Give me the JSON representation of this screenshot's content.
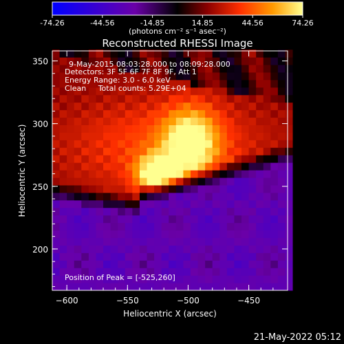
{
  "chart_data": {
    "type": "heatmap",
    "title": "Reconstructed RHESSI Image",
    "xlabel": "Heliocentric X (arcsec)",
    "ylabel": "Heliocentric Y (arcsec)",
    "xlim": [
      -612,
      -418
    ],
    "ylim": [
      167,
      358
    ],
    "x_ticks": [
      -600,
      -550,
      -500,
      -450
    ],
    "y_ticks": [
      200,
      250,
      300,
      350
    ],
    "colorbar": {
      "min": -74.26,
      "max": 74.26,
      "tick_labels": [
        "-74.26",
        "-44.56",
        "-14.85",
        "14.85",
        "44.56",
        "74.26"
      ],
      "unit_label": "(photons cm⁻² s⁻¹ asec⁻²)",
      "colormap": [
        "#0000ff",
        "#6a00a8",
        "#000000",
        "#8b0000",
        "#ff3000",
        "#ff9a00",
        "#ffff90"
      ]
    },
    "annotations": [
      "9-May-2015 08:03:28.000 to 08:09:28.000",
      "Detectors: 3F 5F 6F 7F 8F 9F, Att 1",
      "Energy Range: 3.0 - 6.0 keV",
      "Clean     Total counts: 5.29E+04"
    ],
    "peak_label": "Position of Peak = [-525,260]",
    "peak": {
      "x": -525,
      "y": 260
    },
    "secondary_source": {
      "x": -498,
      "y": 285
    },
    "grid": false
  },
  "timestamp": "21-May-2022 05:12",
  "colors": {
    "background": "#000000",
    "text": "#ffffff"
  }
}
